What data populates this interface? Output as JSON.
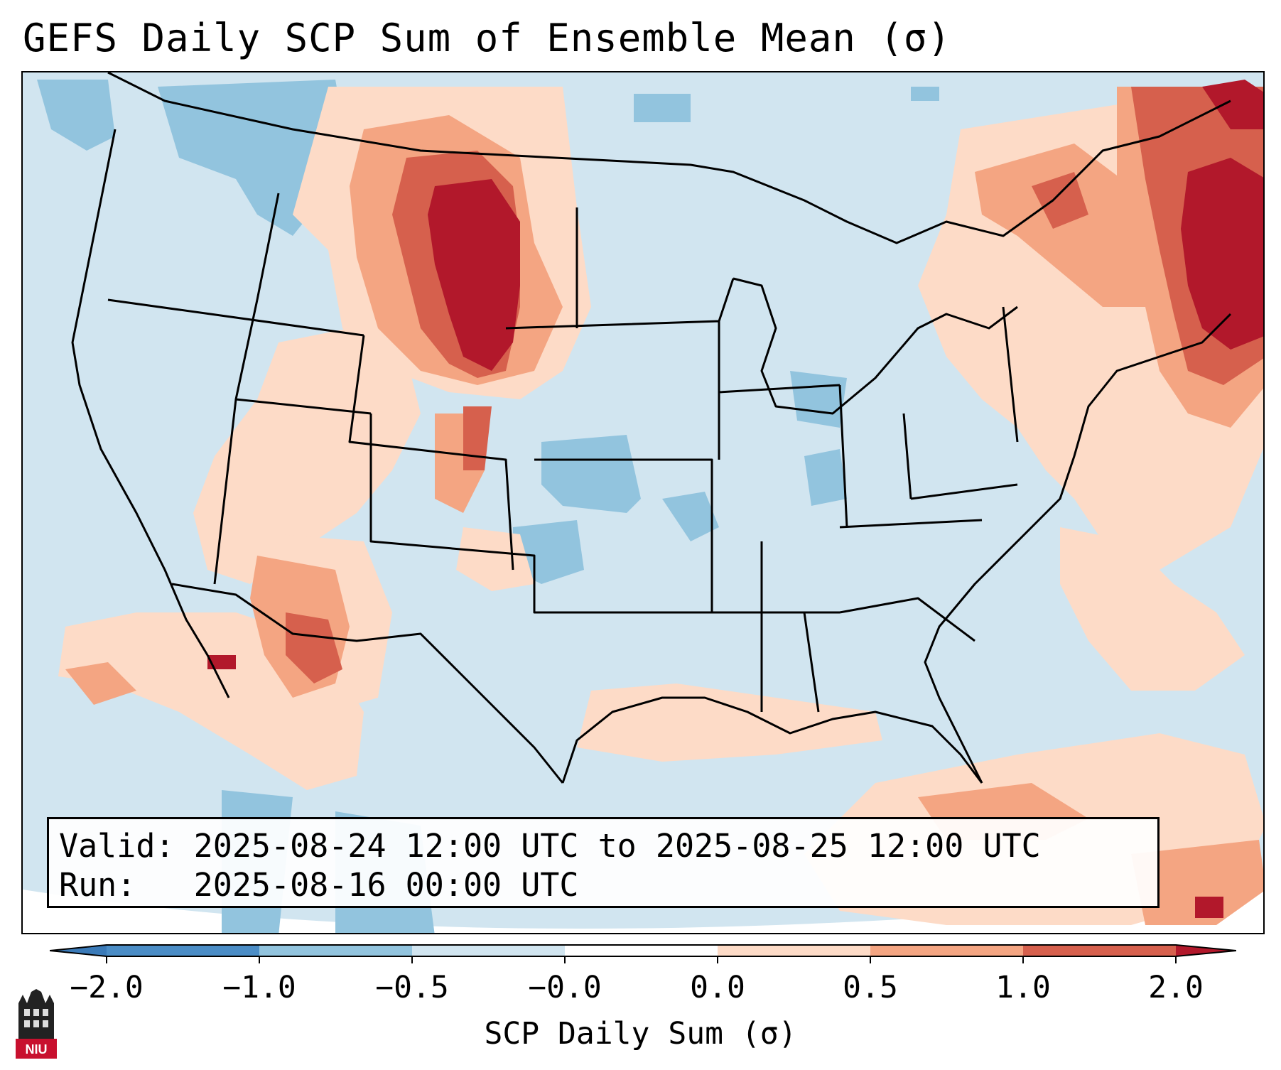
{
  "title": "GEFS Daily SCP Sum of Ensemble Mean (σ)",
  "info_box": {
    "valid_line": "Valid: 2025-08-24 12:00 UTC to 2025-08-25 12:00 UTC",
    "run_line": "Run:   2025-08-16 00:00 UTC"
  },
  "colorbar": {
    "label": "SCP Daily Sum (σ)",
    "ticks": [
      "−2.0",
      "−1.0",
      "−0.5",
      "−0.0",
      "0.0",
      "0.5",
      "1.0",
      "2.0"
    ],
    "bins": [
      {
        "range": "below -2.0",
        "color": "#3a7ab8"
      },
      {
        "range": "-2.0 to -1.0",
        "color": "#4b8dc6"
      },
      {
        "range": "-1.0 to -0.5",
        "color": "#92c4de"
      },
      {
        "range": "-0.5 to 0.0",
        "color": "#d1e5f0"
      },
      {
        "range": "0.0 to 0.5",
        "color": "#fddbc7"
      },
      {
        "range": "0.5 to 1.0",
        "color": "#f4a582"
      },
      {
        "range": "1.0 to 2.0",
        "color": "#d6604d"
      },
      {
        "range": "above 2.0",
        "color": "#b2182b"
      }
    ]
  },
  "map": {
    "region": "Contiguous United States",
    "background_color": "#d1e5f0",
    "features": [
      {
        "name": "northern-rockies-max",
        "level": "above 2.0",
        "color": "#b2182b"
      },
      {
        "name": "new-england-max",
        "level": "above 2.0",
        "color": "#b2182b"
      },
      {
        "name": "southwest-max",
        "level": "1.0 to 2.0",
        "color": "#d6604d"
      },
      {
        "name": "southern-plains-min",
        "level": "-1.0 to -0.5",
        "color": "#92c4de"
      },
      {
        "name": "gulf-coast-band",
        "level": "0.0 to 0.5",
        "color": "#fddbc7"
      }
    ]
  },
  "logo": {
    "text": "NIU"
  }
}
